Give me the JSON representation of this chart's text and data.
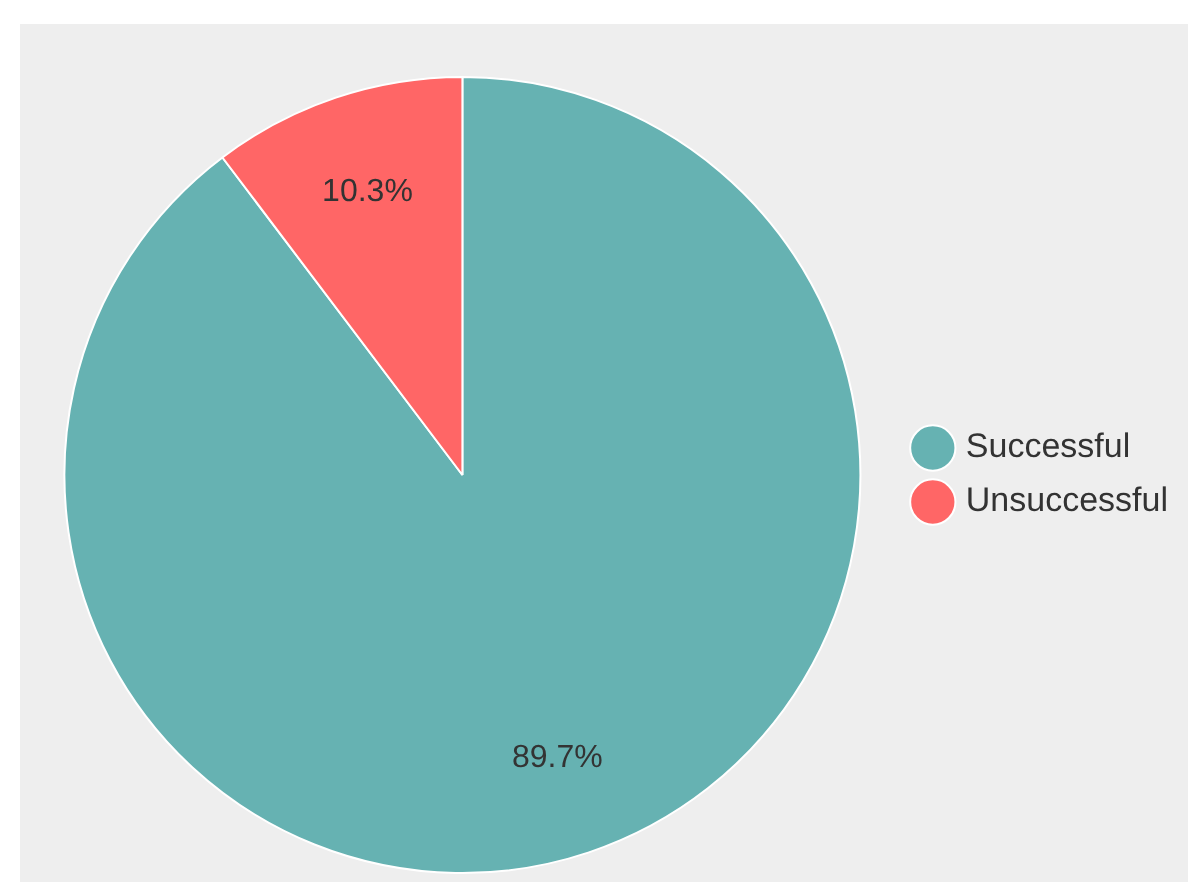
{
  "chart_data": {
    "type": "pie",
    "categories": [
      "Successful",
      "Unsuccessful"
    ],
    "values": [
      89.7,
      10.3
    ],
    "colors": [
      "#66b2b2",
      "#ff6666"
    ],
    "value_labels": [
      "89.7%",
      "10.3%"
    ],
    "legend": "right"
  }
}
